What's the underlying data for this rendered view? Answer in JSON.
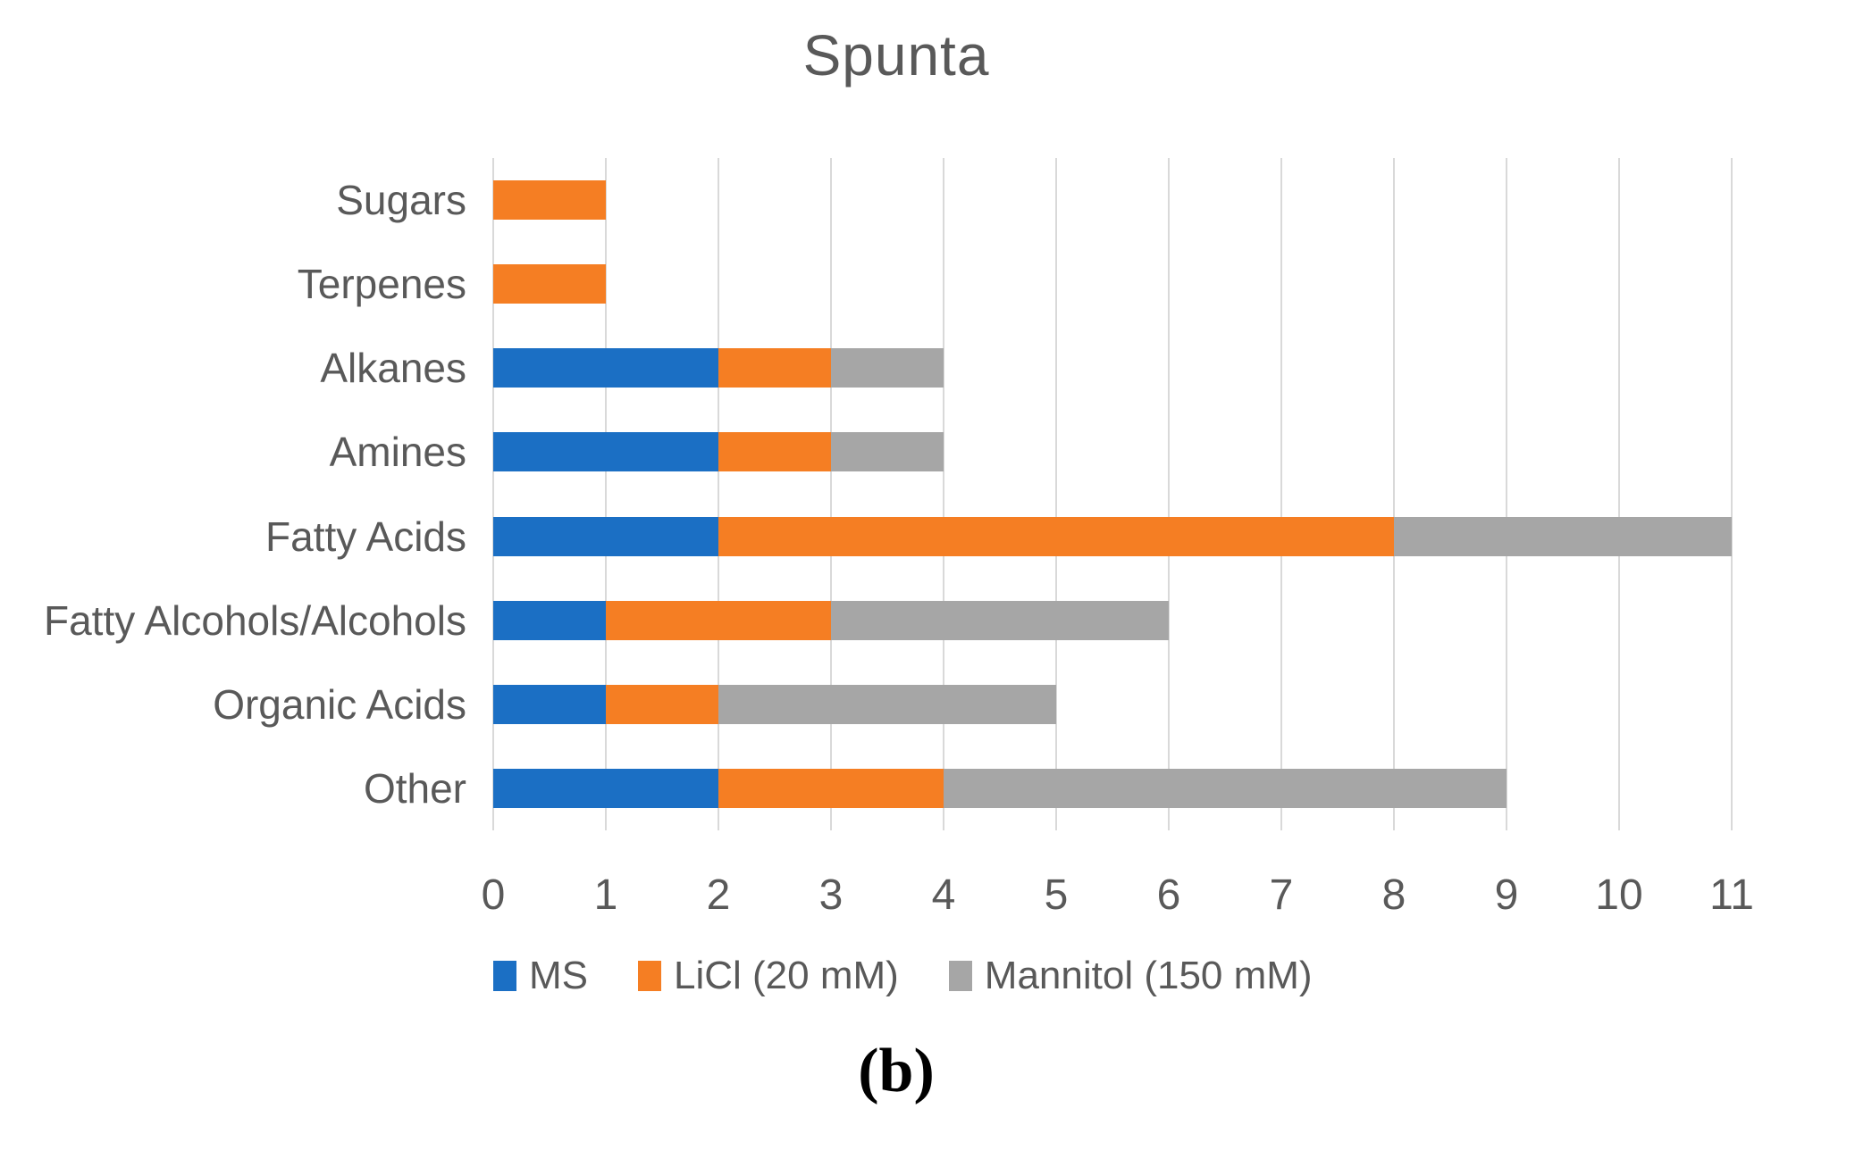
{
  "figure": {
    "caption": "(b)"
  },
  "style": {
    "background": "#ffffff",
    "text_color": "#595959",
    "grid_color": "#d9d9d9",
    "caption_color": "#000000"
  },
  "chart_data": {
    "type": "bar",
    "orientation": "horizontal",
    "stacked": true,
    "title": "Spunta",
    "xlabel": "",
    "ylabel": "",
    "xlim": [
      0,
      11
    ],
    "x_ticks": [
      "0",
      "1",
      "2",
      "3",
      "4",
      "5",
      "6",
      "7",
      "8",
      "9",
      "10",
      "11"
    ],
    "grid": true,
    "legend_position": "bottom",
    "categories": [
      "Sugars",
      "Terpenes",
      "Alkanes",
      "Amines",
      "Fatty Acids",
      "Fatty Alcohols/Alcohols",
      "Organic Acids",
      "Other"
    ],
    "series": [
      {
        "name": "MS",
        "color": "#1b6fc4",
        "values": [
          0,
          0,
          2,
          2,
          2,
          1,
          1,
          2
        ]
      },
      {
        "name": "LiCl (20 mM)",
        "color": "#f57e23",
        "values": [
          1,
          1,
          1,
          1,
          6,
          2,
          1,
          2
        ]
      },
      {
        "name": "Mannitol (150 mM)",
        "color": "#a6a6a6",
        "values": [
          0,
          0,
          1,
          1,
          3,
          3,
          3,
          5
        ]
      }
    ]
  }
}
